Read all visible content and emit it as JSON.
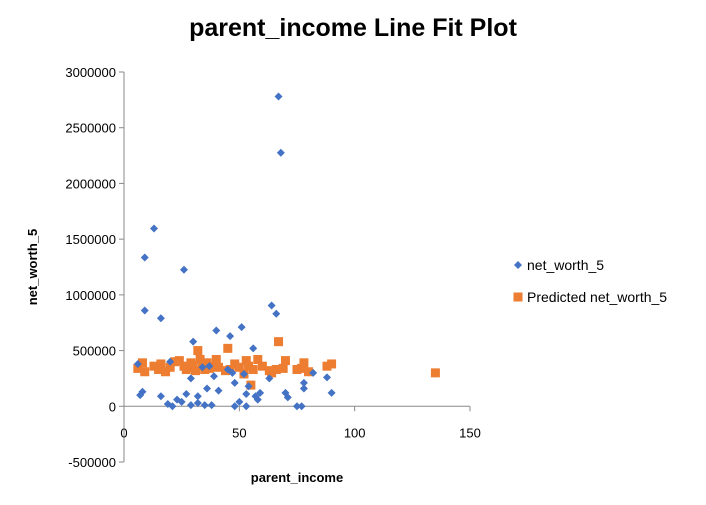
{
  "chart_data": {
    "type": "scatter",
    "title": "parent_income Line Fit  Plot",
    "xlabel": "parent_income",
    "ylabel": "net_worth_5",
    "xlim": [
      0,
      150
    ],
    "ylim": [
      -500000,
      3000000
    ],
    "x_ticks": [
      0,
      50,
      100,
      150
    ],
    "y_ticks": [
      -500000,
      0,
      500000,
      1000000,
      1500000,
      2000000,
      2500000,
      3000000
    ],
    "x_tick_labels": [
      "0",
      "50",
      "100",
      "150"
    ],
    "y_tick_labels": [
      "-500000",
      "0",
      "500000",
      "1000000",
      "1500000",
      "2000000",
      "2500000",
      "3000000"
    ],
    "grid": false,
    "legend_position": "right",
    "series": [
      {
        "name": "net_worth_5",
        "color": "#4472C4",
        "marker": "diamond",
        "points": [
          [
            67,
            2780000
          ],
          [
            68,
            2275000
          ],
          [
            13,
            1595000
          ],
          [
            9,
            1335000
          ],
          [
            26,
            1225000
          ],
          [
            64,
            905000
          ],
          [
            9,
            860000
          ],
          [
            66,
            830000
          ],
          [
            16,
            790000
          ],
          [
            51,
            710000
          ],
          [
            40,
            680000
          ],
          [
            46,
            630000
          ],
          [
            30,
            580000
          ],
          [
            56,
            520000
          ],
          [
            6,
            380000
          ],
          [
            20,
            400000
          ],
          [
            34,
            350000
          ],
          [
            47,
            300000
          ],
          [
            39,
            270000
          ],
          [
            29,
            250000
          ],
          [
            48,
            210000
          ],
          [
            78,
            210000
          ],
          [
            54,
            180000
          ],
          [
            78,
            160000
          ],
          [
            36,
            160000
          ],
          [
            41,
            140000
          ],
          [
            8,
            130000
          ],
          [
            70,
            120000
          ],
          [
            59,
            120000
          ],
          [
            27,
            110000
          ],
          [
            53,
            110000
          ],
          [
            7,
            100000
          ],
          [
            32,
            90000
          ],
          [
            16,
            90000
          ],
          [
            71,
            80000
          ],
          [
            23,
            60000
          ],
          [
            58,
            60000
          ],
          [
            88,
            260000
          ],
          [
            82,
            300000
          ],
          [
            90,
            120000
          ],
          [
            50,
            40000
          ],
          [
            32,
            30000
          ],
          [
            19,
            20000
          ],
          [
            29,
            10000
          ],
          [
            35,
            10000
          ],
          [
            21,
            0
          ],
          [
            38,
            10000
          ],
          [
            48,
            0
          ],
          [
            53,
            0
          ],
          [
            75,
            0
          ],
          [
            77,
            0
          ],
          [
            25,
            40000
          ],
          [
            45,
            330000
          ],
          [
            63,
            250000
          ],
          [
            57,
            90000
          ],
          [
            37,
            360000
          ],
          [
            52,
            290000
          ]
        ]
      },
      {
        "name": "Predicted net_worth_5",
        "color": "#ED7D31",
        "marker": "square",
        "points": [
          [
            6,
            340000
          ],
          [
            8,
            390000
          ],
          [
            9,
            310000
          ],
          [
            13,
            360000
          ],
          [
            15,
            330000
          ],
          [
            16,
            380000
          ],
          [
            18,
            310000
          ],
          [
            20,
            350000
          ],
          [
            22,
            400000
          ],
          [
            24,
            410000
          ],
          [
            26,
            360000
          ],
          [
            27,
            330000
          ],
          [
            28,
            350000
          ],
          [
            29,
            390000
          ],
          [
            30,
            370000
          ],
          [
            31,
            320000
          ],
          [
            32,
            500000
          ],
          [
            33,
            420000
          ],
          [
            34,
            360000
          ],
          [
            35,
            330000
          ],
          [
            36,
            390000
          ],
          [
            37,
            340000
          ],
          [
            38,
            360000
          ],
          [
            40,
            420000
          ],
          [
            41,
            350000
          ],
          [
            44,
            320000
          ],
          [
            45,
            520000
          ],
          [
            46,
            330000
          ],
          [
            48,
            380000
          ],
          [
            50,
            350000
          ],
          [
            52,
            290000
          ],
          [
            53,
            410000
          ],
          [
            54,
            360000
          ],
          [
            55,
            190000
          ],
          [
            56,
            330000
          ],
          [
            58,
            420000
          ],
          [
            60,
            360000
          ],
          [
            63,
            320000
          ],
          [
            64,
            300000
          ],
          [
            66,
            330000
          ],
          [
            67,
            580000
          ],
          [
            69,
            340000
          ],
          [
            70,
            410000
          ],
          [
            75,
            330000
          ],
          [
            77,
            340000
          ],
          [
            78,
            390000
          ],
          [
            80,
            310000
          ],
          [
            88,
            360000
          ],
          [
            90,
            380000
          ],
          [
            135,
            300000
          ]
        ]
      }
    ]
  }
}
